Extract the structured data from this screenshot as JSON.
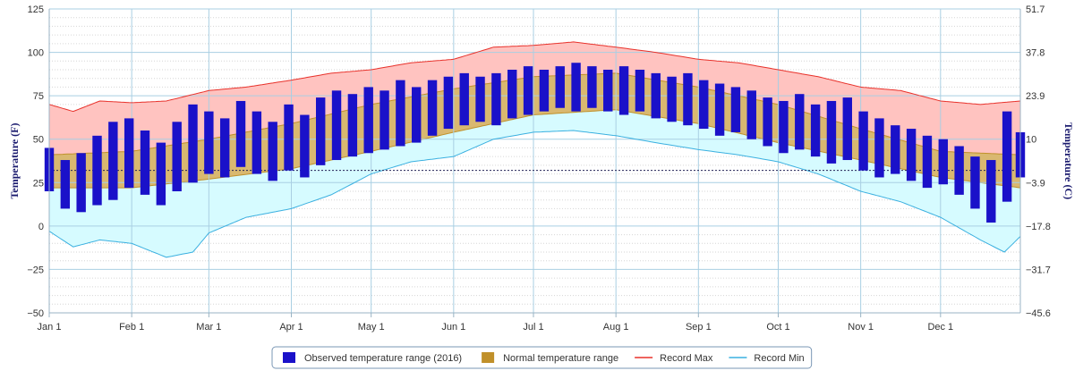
{
  "chart_data": {
    "type": "bar",
    "chart_style": "floating-range-bars-with-bands",
    "grid": true,
    "legend_position": "bottom-center",
    "y_left": {
      "title": "Temperature (F)",
      "range": [
        -50,
        125
      ],
      "ticks": [
        "125",
        "100",
        "75",
        "50",
        "25",
        "0",
        "−25",
        "−50"
      ]
    },
    "y_right": {
      "title": "Temperature (C)",
      "ticks": [
        "51.7",
        "37.8",
        "23.9",
        "10",
        "−3.9",
        "−17.8",
        "−31.7",
        "−45.6"
      ]
    },
    "x": {
      "range_days": [
        1,
        366
      ],
      "ticks": [
        {
          "label": "Jan 1",
          "day": 1
        },
        {
          "label": "Feb 1",
          "day": 32
        },
        {
          "label": "Mar 1",
          "day": 61
        },
        {
          "label": "Apr 1",
          "day": 92
        },
        {
          "label": "May 1",
          "day": 122
        },
        {
          "label": "Jun 1",
          "day": 153
        },
        {
          "label": "Jul 1",
          "day": 183
        },
        {
          "label": "Aug 1",
          "day": 214
        },
        {
          "label": "Sep 1",
          "day": 245
        },
        {
          "label": "Oct 1",
          "day": 275
        },
        {
          "label": "Nov 1",
          "day": 306
        },
        {
          "label": "Dec 1",
          "day": 336
        }
      ]
    },
    "freezing_line_f": 32,
    "colors": {
      "observed": "#1a11c9",
      "normal": "#c0902a",
      "record_max": "#e8312a",
      "record_max_fill": "#ffc3c0",
      "record_min": "#3ab0e0",
      "record_min_fill": "#d6fbff",
      "grid": "#a9cfe3"
    },
    "legend": [
      {
        "label": "Observed temperature range (2016)",
        "key": "observed"
      },
      {
        "label": "Normal temperature range",
        "key": "normal"
      },
      {
        "label": "Record Max",
        "key": "record_max"
      },
      {
        "label": "Record Min",
        "key": "record_min"
      }
    ],
    "normal_range": {
      "day": [
        1,
        32,
        61,
        92,
        122,
        153,
        183,
        214,
        245,
        275,
        306,
        336,
        366
      ],
      "low": [
        22,
        22,
        27,
        33,
        43,
        54,
        64,
        67,
        59,
        48,
        38,
        28,
        22
      ],
      "high": [
        41,
        43,
        50,
        59,
        70,
        79,
        86,
        88,
        80,
        70,
        56,
        43,
        41
      ]
    },
    "record_max": {
      "day": [
        1,
        10,
        20,
        32,
        45,
        61,
        75,
        92,
        107,
        122,
        137,
        153,
        168,
        183,
        198,
        214,
        229,
        245,
        260,
        275,
        290,
        306,
        321,
        336,
        351,
        366
      ],
      "value": [
        70,
        66,
        72,
        71,
        72,
        78,
        80,
        84,
        88,
        90,
        94,
        96,
        103,
        104,
        106,
        103,
        100,
        96,
        94,
        90,
        86,
        80,
        78,
        72,
        70,
        72
      ]
    },
    "record_min": {
      "day": [
        1,
        10,
        20,
        32,
        45,
        55,
        61,
        75,
        92,
        107,
        122,
        137,
        153,
        168,
        183,
        198,
        214,
        229,
        245,
        260,
        275,
        290,
        306,
        321,
        336,
        351,
        360,
        366
      ],
      "value": [
        -3,
        -12,
        -8,
        -10,
        -18,
        -15,
        -4,
        5,
        10,
        18,
        30,
        37,
        40,
        50,
        54,
        55,
        52,
        48,
        44,
        41,
        37,
        30,
        20,
        14,
        5,
        -8,
        -15,
        -6
      ]
    },
    "observed": [
      {
        "day": 1,
        "low": 20,
        "high": 45
      },
      {
        "day": 7,
        "low": 10,
        "high": 38
      },
      {
        "day": 13,
        "low": 8,
        "high": 42
      },
      {
        "day": 19,
        "low": 12,
        "high": 52
      },
      {
        "day": 25,
        "low": 15,
        "high": 60
      },
      {
        "day": 31,
        "low": 22,
        "high": 62
      },
      {
        "day": 37,
        "low": 18,
        "high": 55
      },
      {
        "day": 43,
        "low": 12,
        "high": 48
      },
      {
        "day": 49,
        "low": 20,
        "high": 60
      },
      {
        "day": 55,
        "low": 25,
        "high": 70
      },
      {
        "day": 61,
        "low": 30,
        "high": 66
      },
      {
        "day": 67,
        "low": 28,
        "high": 62
      },
      {
        "day": 73,
        "low": 34,
        "high": 72
      },
      {
        "day": 79,
        "low": 30,
        "high": 66
      },
      {
        "day": 85,
        "low": 26,
        "high": 60
      },
      {
        "day": 91,
        "low": 32,
        "high": 70
      },
      {
        "day": 97,
        "low": 28,
        "high": 64
      },
      {
        "day": 103,
        "low": 35,
        "high": 74
      },
      {
        "day": 109,
        "low": 38,
        "high": 78
      },
      {
        "day": 115,
        "low": 40,
        "high": 76
      },
      {
        "day": 121,
        "low": 42,
        "high": 80
      },
      {
        "day": 127,
        "low": 44,
        "high": 78
      },
      {
        "day": 133,
        "low": 46,
        "high": 84
      },
      {
        "day": 139,
        "low": 48,
        "high": 80
      },
      {
        "day": 145,
        "low": 52,
        "high": 84
      },
      {
        "day": 151,
        "low": 56,
        "high": 86
      },
      {
        "day": 157,
        "low": 58,
        "high": 88
      },
      {
        "day": 163,
        "low": 60,
        "high": 86
      },
      {
        "day": 169,
        "low": 58,
        "high": 88
      },
      {
        "day": 175,
        "low": 62,
        "high": 90
      },
      {
        "day": 181,
        "low": 64,
        "high": 92
      },
      {
        "day": 187,
        "low": 66,
        "high": 90
      },
      {
        "day": 193,
        "low": 68,
        "high": 92
      },
      {
        "day": 199,
        "low": 66,
        "high": 94
      },
      {
        "day": 205,
        "low": 68,
        "high": 92
      },
      {
        "day": 211,
        "low": 66,
        "high": 90
      },
      {
        "day": 217,
        "low": 64,
        "high": 92
      },
      {
        "day": 223,
        "low": 66,
        "high": 90
      },
      {
        "day": 229,
        "low": 62,
        "high": 88
      },
      {
        "day": 235,
        "low": 60,
        "high": 86
      },
      {
        "day": 241,
        "low": 58,
        "high": 88
      },
      {
        "day": 247,
        "low": 56,
        "high": 84
      },
      {
        "day": 253,
        "low": 52,
        "high": 82
      },
      {
        "day": 259,
        "low": 54,
        "high": 80
      },
      {
        "day": 265,
        "low": 50,
        "high": 78
      },
      {
        "day": 271,
        "low": 46,
        "high": 74
      },
      {
        "day": 277,
        "low": 42,
        "high": 72
      },
      {
        "day": 283,
        "low": 44,
        "high": 76
      },
      {
        "day": 289,
        "low": 40,
        "high": 70
      },
      {
        "day": 295,
        "low": 36,
        "high": 72
      },
      {
        "day": 301,
        "low": 38,
        "high": 74
      },
      {
        "day": 307,
        "low": 32,
        "high": 66
      },
      {
        "day": 313,
        "low": 28,
        "high": 62
      },
      {
        "day": 319,
        "low": 30,
        "high": 58
      },
      {
        "day": 325,
        "low": 26,
        "high": 56
      },
      {
        "day": 331,
        "low": 22,
        "high": 52
      },
      {
        "day": 337,
        "low": 24,
        "high": 50
      },
      {
        "day": 343,
        "low": 18,
        "high": 46
      },
      {
        "day": 349,
        "low": 10,
        "high": 40
      },
      {
        "day": 355,
        "low": 2,
        "high": 38
      },
      {
        "day": 361,
        "low": 14,
        "high": 66
      },
      {
        "day": 366,
        "low": 28,
        "high": 54
      }
    ]
  }
}
